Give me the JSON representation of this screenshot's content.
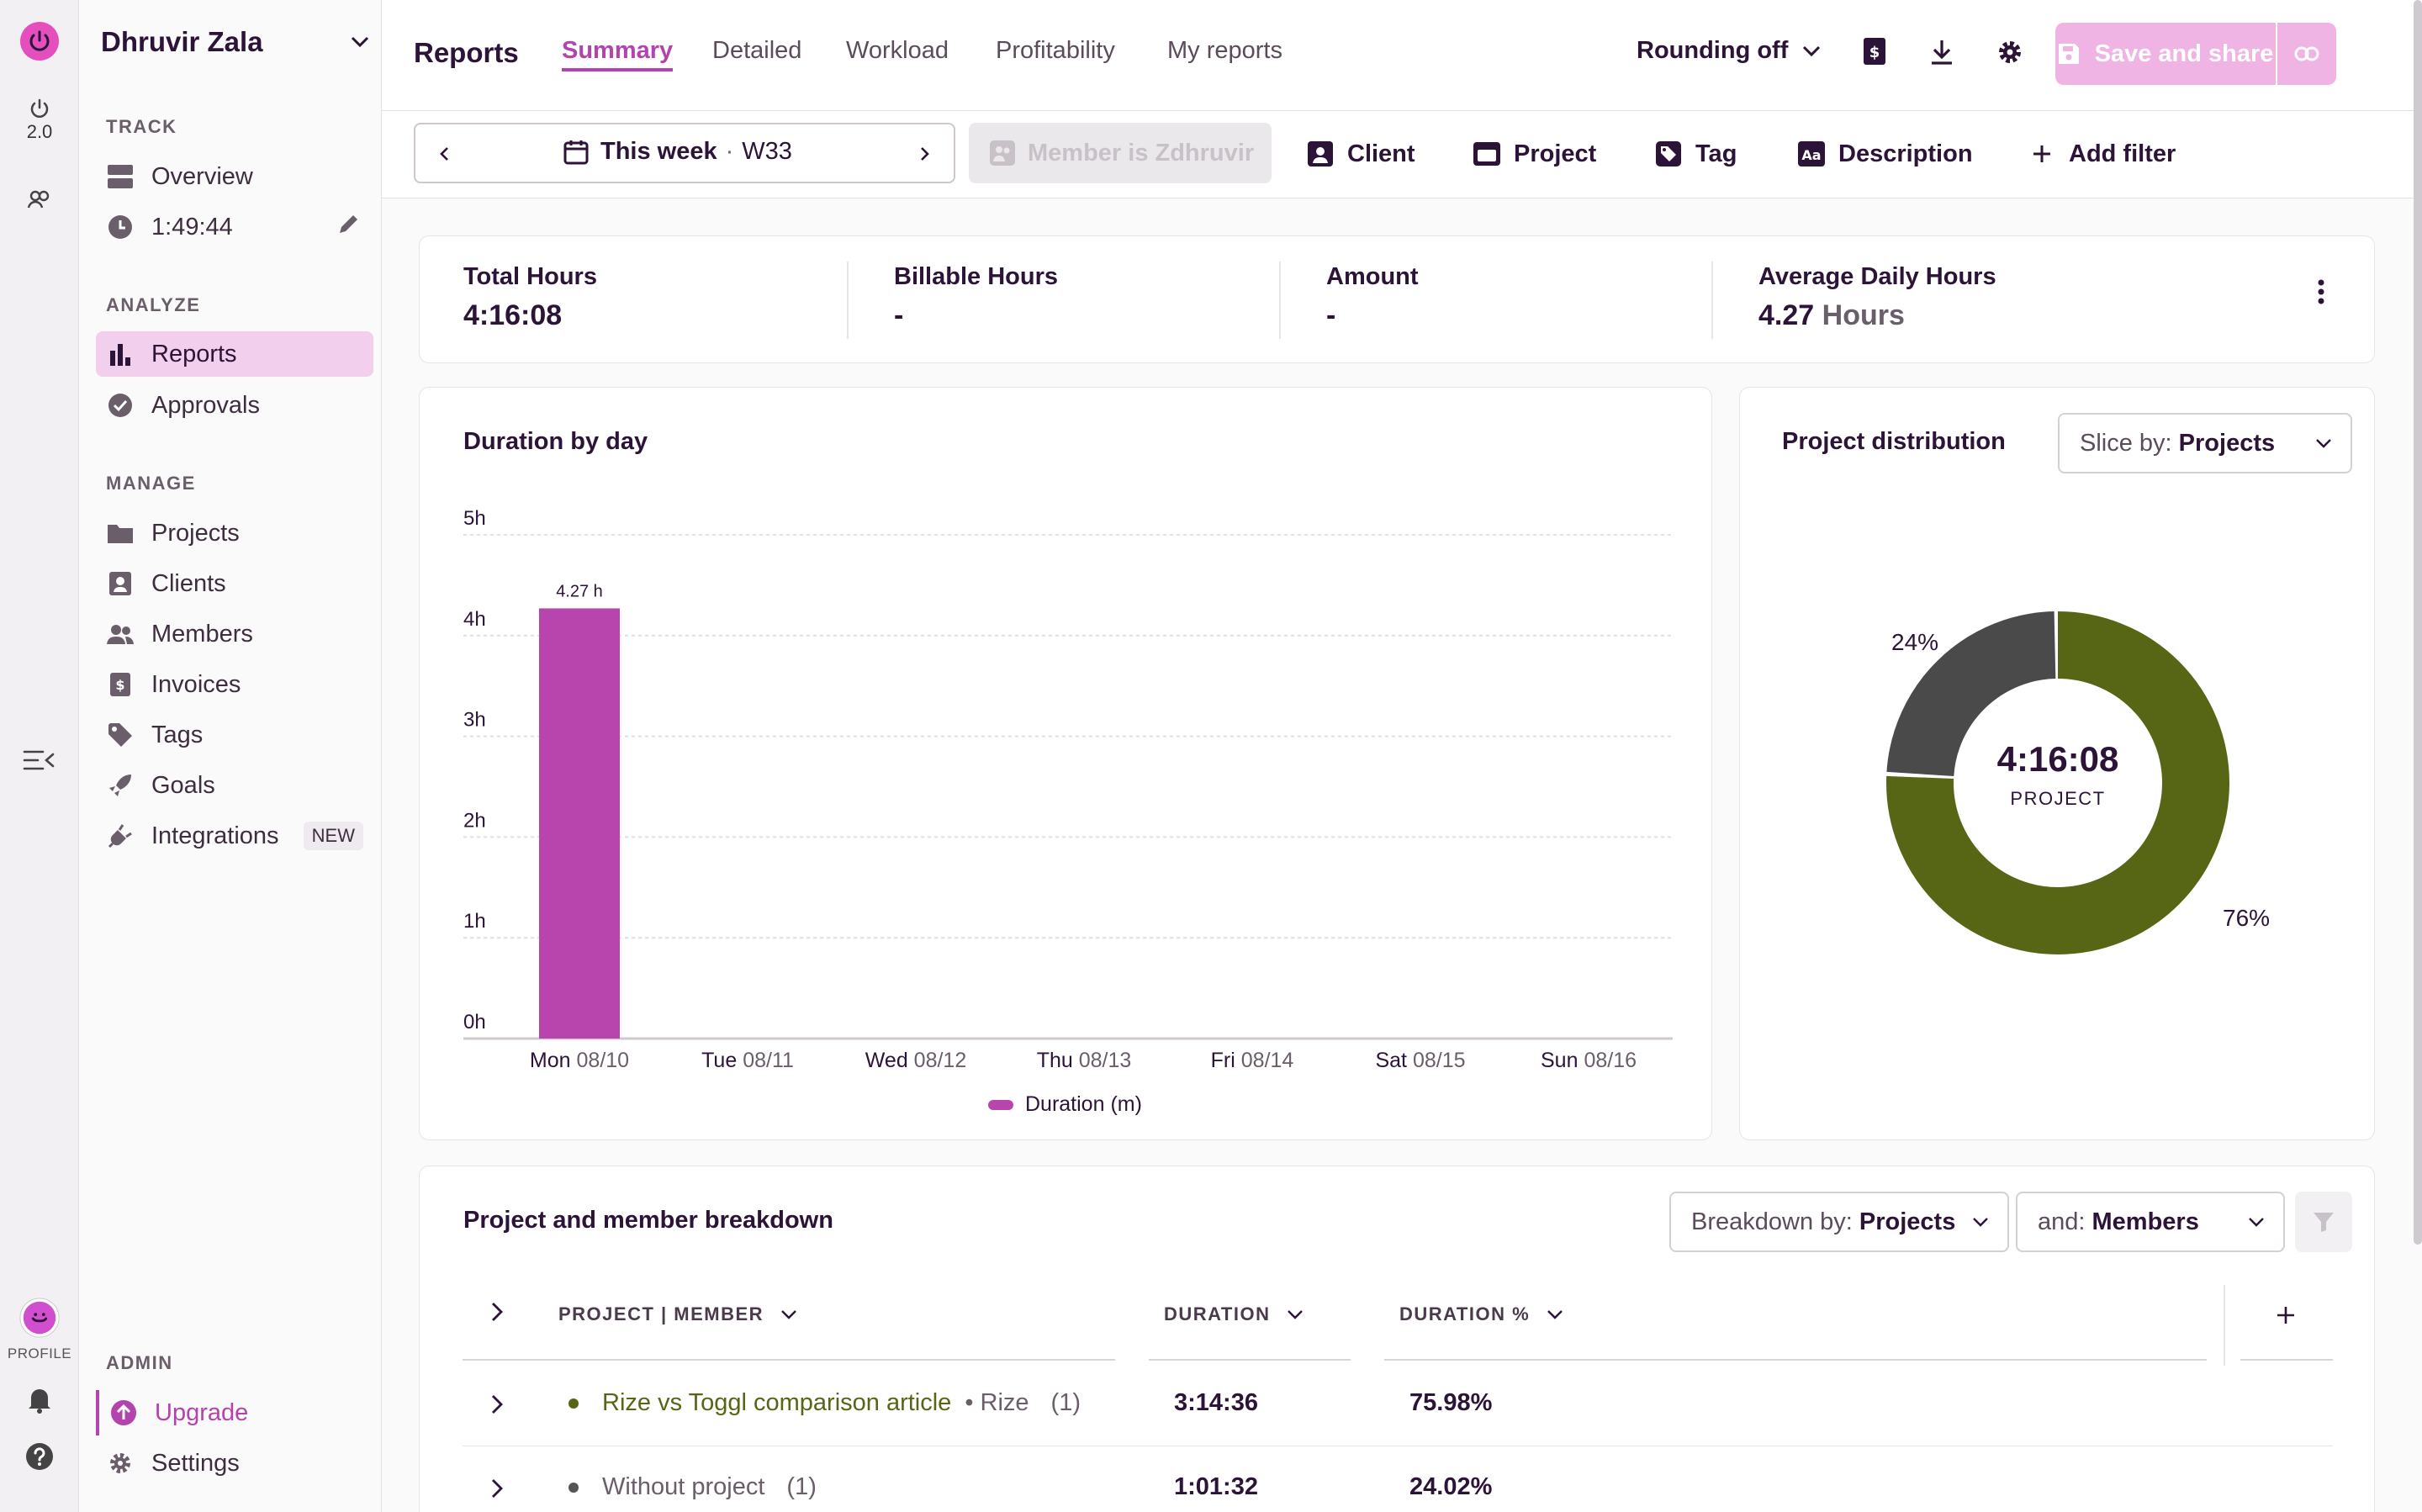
{
  "rail": {
    "version": "2.0",
    "profile_label": "PROFILE"
  },
  "sidebar": {
    "workspace_name": "Dhruvir Zala",
    "sections": {
      "track": "TRACK",
      "analyze": "ANALYZE",
      "manage": "MANAGE",
      "admin": "ADMIN"
    },
    "track": {
      "overview": "Overview",
      "timer": "1:49:44"
    },
    "analyze": {
      "reports": "Reports",
      "approvals": "Approvals"
    },
    "manage": {
      "projects": "Projects",
      "clients": "Clients",
      "members": "Members",
      "invoices": "Invoices",
      "tags": "Tags",
      "goals": "Goals",
      "integrations": "Integrations",
      "integrations_badge": "NEW"
    },
    "admin": {
      "upgrade": "Upgrade",
      "settings": "Settings"
    }
  },
  "header": {
    "title": "Reports",
    "tabs": [
      "Summary",
      "Detailed",
      "Workload",
      "Profitability",
      "My reports"
    ],
    "rounding": "Rounding off",
    "save_share": "Save and share"
  },
  "filters": {
    "date_range": "This week",
    "week": "W33",
    "member_chip": "Member is Zdhruvir",
    "client": "Client",
    "project": "Project",
    "tag": "Tag",
    "description": "Description",
    "add_filter": "Add filter"
  },
  "stats": [
    {
      "label": "Total Hours",
      "value": "4:16:08"
    },
    {
      "label": "Billable Hours",
      "value": "-"
    },
    {
      "label": "Amount",
      "value": "-"
    },
    {
      "label": "Average Daily Hours",
      "value": "4.27",
      "unit": "Hours"
    }
  ],
  "duration_chart": {
    "title": "Duration by day",
    "legend": "Duration (m)",
    "bar_label": "4.27 h",
    "yticks": [
      "5h",
      "4h",
      "3h",
      "2h",
      "1h",
      "0h"
    ],
    "days": [
      {
        "day": "Mon",
        "date": "08/10"
      },
      {
        "day": "Tue",
        "date": "08/11"
      },
      {
        "day": "Wed",
        "date": "08/12"
      },
      {
        "day": "Thu",
        "date": "08/13"
      },
      {
        "day": "Fri",
        "date": "08/14"
      },
      {
        "day": "Sat",
        "date": "08/15"
      },
      {
        "day": "Sun",
        "date": "08/16"
      }
    ]
  },
  "chart_data": {
    "type": "bar",
    "categories": [
      "Mon 08/10",
      "Tue 08/11",
      "Wed 08/12",
      "Thu 08/13",
      "Fri 08/14",
      "Sat 08/15",
      "Sun 08/16"
    ],
    "values": [
      4.27,
      0,
      0,
      0,
      0,
      0,
      0
    ],
    "ylim": [
      0,
      5
    ],
    "color": "#b845ae",
    "grid": true,
    "legend": "bottom"
  },
  "distribution": {
    "title": "Project distribution",
    "slice_prefix": "Slice by:",
    "slice_value": "Projects",
    "center_value": "4:16:08",
    "center_label": "PROJECT",
    "slices": [
      {
        "pct": 76,
        "label": "76%",
        "color": "#566614"
      },
      {
        "pct": 24,
        "label": "24%",
        "color": "#4a4a4a"
      }
    ]
  },
  "breakdown": {
    "title": "Project and member breakdown",
    "breakdown_prefix": "Breakdown by:",
    "breakdown_value": "Projects",
    "and_prefix": "and:",
    "and_value": "Members",
    "columns": [
      "PROJECT | MEMBER",
      "DURATION",
      "DURATION %"
    ],
    "rows": [
      {
        "project": "Rize vs Toggl comparison article",
        "client": "• Rize",
        "count": "(1)",
        "duration": "3:14:36",
        "pct": "75.98%",
        "color": "#566614"
      },
      {
        "project": "Without project",
        "client": "",
        "count": "(1)",
        "duration": "1:01:32",
        "pct": "24.02%",
        "color": "#555555"
      }
    ]
  },
  "colors": {
    "accent": "#b343ad",
    "project_green": "#566614",
    "dark_slice": "#4a4a4a"
  }
}
